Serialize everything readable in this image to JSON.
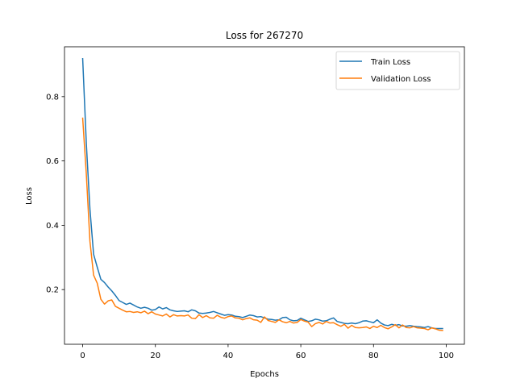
{
  "chart_data": {
    "type": "line",
    "title": "Loss for 267270",
    "xlabel": "Epochs",
    "ylabel": "Loss",
    "xlim": [
      -5,
      105
    ],
    "ylim": [
      0.03,
      0.955
    ],
    "xticks": [
      0,
      20,
      40,
      60,
      80,
      100
    ],
    "yticks": [
      0.2,
      0.4,
      0.6,
      0.8
    ],
    "legend_position": "top-right",
    "grid": false,
    "series": [
      {
        "name": "Train Loss",
        "color": "#1f77b4",
        "x": [
          0,
          1,
          2,
          3,
          4,
          5,
          6,
          7,
          8,
          9,
          10,
          11,
          12,
          13,
          14,
          15,
          16,
          17,
          18,
          19,
          20,
          21,
          22,
          23,
          24,
          25,
          26,
          27,
          28,
          29,
          30,
          31,
          32,
          33,
          34,
          35,
          36,
          37,
          38,
          39,
          40,
          41,
          42,
          43,
          44,
          45,
          46,
          47,
          48,
          49,
          50,
          51,
          52,
          53,
          54,
          55,
          56,
          57,
          58,
          59,
          60,
          61,
          62,
          63,
          64,
          65,
          66,
          67,
          68,
          69,
          70,
          71,
          72,
          73,
          74,
          75,
          76,
          77,
          78,
          79,
          80,
          81,
          82,
          83,
          84,
          85,
          86,
          87,
          88,
          89,
          90,
          91,
          92,
          93,
          94,
          95,
          96,
          97,
          98,
          99
        ],
        "values": [
          0.918,
          0.655,
          0.45,
          0.31,
          0.27,
          0.232,
          0.222,
          0.208,
          0.196,
          0.182,
          0.166,
          0.16,
          0.154,
          0.158,
          0.152,
          0.146,
          0.142,
          0.145,
          0.142,
          0.136,
          0.138,
          0.146,
          0.14,
          0.144,
          0.137,
          0.134,
          0.132,
          0.133,
          0.134,
          0.131,
          0.137,
          0.134,
          0.127,
          0.126,
          0.127,
          0.129,
          0.132,
          0.128,
          0.124,
          0.12,
          0.122,
          0.121,
          0.117,
          0.116,
          0.113,
          0.117,
          0.121,
          0.119,
          0.115,
          0.116,
          0.112,
          0.108,
          0.107,
          0.105,
          0.106,
          0.113,
          0.114,
          0.106,
          0.103,
          0.104,
          0.111,
          0.106,
          0.101,
          0.103,
          0.108,
          0.106,
          0.102,
          0.103,
          0.108,
          0.112,
          0.101,
          0.098,
          0.095,
          0.094,
          0.096,
          0.094,
          0.097,
          0.102,
          0.103,
          0.1,
          0.097,
          0.106,
          0.096,
          0.09,
          0.088,
          0.092,
          0.089,
          0.091,
          0.087,
          0.086,
          0.088,
          0.086,
          0.085,
          0.084,
          0.082,
          0.085,
          0.081,
          0.079,
          0.079,
          0.079
        ]
      },
      {
        "name": "Validation Loss",
        "color": "#ff7f0e",
        "x": [
          0,
          1,
          2,
          3,
          4,
          5,
          6,
          7,
          8,
          9,
          10,
          11,
          12,
          13,
          14,
          15,
          16,
          17,
          18,
          19,
          20,
          21,
          22,
          23,
          24,
          25,
          26,
          27,
          28,
          29,
          30,
          31,
          32,
          33,
          34,
          35,
          36,
          37,
          38,
          39,
          40,
          41,
          42,
          43,
          44,
          45,
          46,
          47,
          48,
          49,
          50,
          51,
          52,
          53,
          54,
          55,
          56,
          57,
          58,
          59,
          60,
          61,
          62,
          63,
          64,
          65,
          66,
          67,
          68,
          69,
          70,
          71,
          72,
          73,
          74,
          75,
          76,
          77,
          78,
          79,
          80,
          81,
          82,
          83,
          84,
          85,
          86,
          87,
          88,
          89,
          90,
          91,
          92,
          93,
          94,
          95,
          96,
          97,
          98,
          99
        ],
        "values": [
          0.733,
          0.56,
          0.35,
          0.245,
          0.22,
          0.17,
          0.155,
          0.165,
          0.168,
          0.148,
          0.142,
          0.136,
          0.131,
          0.132,
          0.129,
          0.131,
          0.128,
          0.133,
          0.125,
          0.131,
          0.124,
          0.121,
          0.118,
          0.124,
          0.115,
          0.122,
          0.118,
          0.119,
          0.118,
          0.121,
          0.111,
          0.11,
          0.122,
          0.113,
          0.119,
          0.112,
          0.111,
          0.12,
          0.114,
          0.111,
          0.116,
          0.118,
          0.112,
          0.111,
          0.106,
          0.11,
          0.112,
          0.106,
          0.105,
          0.098,
          0.115,
          0.104,
          0.101,
          0.098,
          0.106,
          0.1,
          0.097,
          0.101,
          0.096,
          0.098,
          0.107,
          0.102,
          0.099,
          0.085,
          0.094,
          0.098,
          0.093,
          0.101,
          0.096,
          0.097,
          0.091,
          0.086,
          0.092,
          0.08,
          0.089,
          0.082,
          0.081,
          0.082,
          0.084,
          0.079,
          0.086,
          0.082,
          0.089,
          0.082,
          0.078,
          0.084,
          0.091,
          0.081,
          0.09,
          0.082,
          0.081,
          0.085,
          0.081,
          0.08,
          0.079,
          0.075,
          0.081,
          0.078,
          0.074,
          0.073
        ]
      }
    ]
  }
}
